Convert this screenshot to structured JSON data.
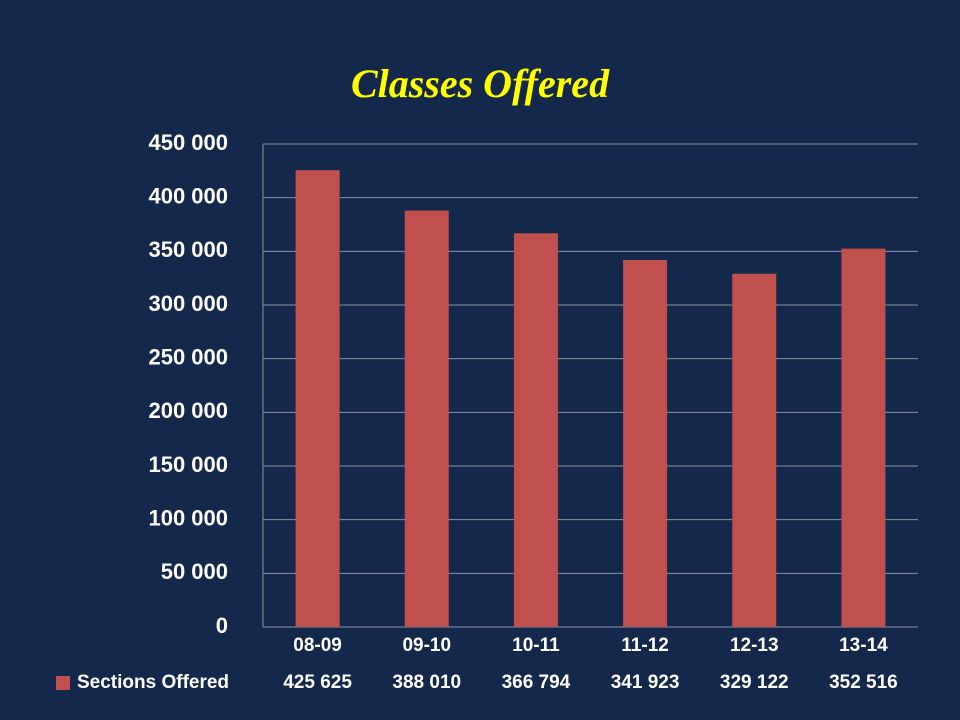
{
  "chart_data": {
    "type": "bar",
    "title": "Classes Offered",
    "categories": [
      "08-09",
      "09-10",
      "10-11",
      "11-12",
      "12-13",
      "13-14"
    ],
    "series": [
      {
        "name": "Sections Offered",
        "color": "#c0504d",
        "values": [
          425625,
          388010,
          366794,
          341923,
          329122,
          352516
        ],
        "value_labels": [
          "425 625",
          "388 010",
          "366 794",
          "341 923",
          "329 122",
          "352 516"
        ]
      }
    ],
    "ylim": [
      0,
      450000
    ],
    "yticks": [
      0,
      {
        "value": 50000,
        "label": "50 000"
      },
      {
        "value": 100000,
        "label": "100 000"
      },
      {
        "value": 150000,
        "label": "150 000"
      },
      {
        "value": 200000,
        "label": "200 000"
      },
      {
        "value": 250000,
        "label": "250 000"
      },
      {
        "value": 300000,
        "label": "300 000"
      },
      {
        "value": 350000,
        "label": "350 000"
      },
      {
        "value": 400000,
        "label": "400 000"
      },
      {
        "value": 450000,
        "label": "450 000"
      }
    ],
    "grid": true
  }
}
